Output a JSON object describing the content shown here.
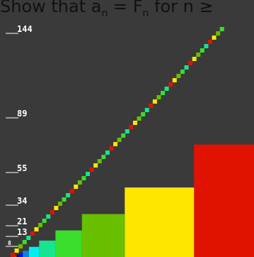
{
  "title": {
    "lead": "Show that a",
    "sub1": "n",
    "mid": " = F",
    "sub2": "n",
    "tail": " for n ≥"
  },
  "axis": {
    "ticks": [
      "144",
      "89",
      "55",
      "34",
      "21",
      "13",
      "8"
    ]
  },
  "colors": {
    "background_dark": "#3a3a3a",
    "label": "#ffffff",
    "squares": [
      "#000b7a",
      "#0711e0",
      "#0b83dc",
      "#00f0f0",
      "#17e48f",
      "#3ade2c",
      "#67bf00",
      "#ffe600",
      "#e01300"
    ]
  },
  "chart_data": {
    "type": "diagram",
    "sequence": [
      1,
      1,
      2,
      3,
      5,
      8,
      13,
      21,
      34,
      55,
      89,
      144
    ]
  }
}
